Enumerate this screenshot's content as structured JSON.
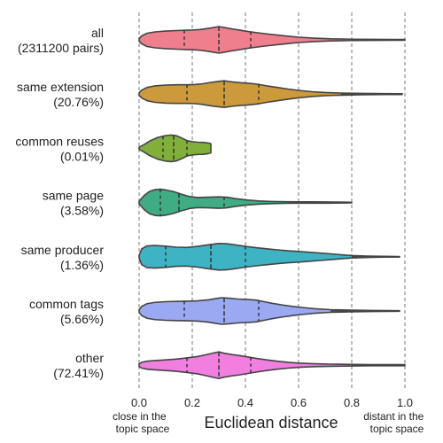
{
  "chart_data": {
    "type": "violin",
    "orientation": "horizontal",
    "xlabel": "Euclidean distance",
    "xlim": [
      0.0,
      1.0
    ],
    "xticks": [
      0.0,
      0.2,
      0.4,
      0.6,
      0.8,
      1.0
    ],
    "xtick_labels": [
      "0.0",
      "0.2",
      "0.4",
      "0.6",
      "0.8",
      "1.0"
    ],
    "grid": "vertical-dashed",
    "end_annotations": {
      "left": [
        "close in the",
        "topic space"
      ],
      "right": [
        "distant in the",
        "topic space"
      ]
    },
    "categories": [
      {
        "label": [
          "all",
          "(2311200 pairs)"
        ],
        "color": "#f07f8e",
        "min": 0.0,
        "max": 1.0,
        "q1": 0.17,
        "median": 0.3,
        "q3": 0.42,
        "density": [
          [
            0.0,
            0.1
          ],
          [
            0.01,
            0.3
          ],
          [
            0.03,
            0.5
          ],
          [
            0.06,
            0.6
          ],
          [
            0.1,
            0.66
          ],
          [
            0.14,
            0.7
          ],
          [
            0.17,
            0.72
          ],
          [
            0.2,
            0.74
          ],
          [
            0.23,
            0.78
          ],
          [
            0.26,
            0.86
          ],
          [
            0.28,
            0.93
          ],
          [
            0.3,
            1.0
          ],
          [
            0.32,
            0.93
          ],
          [
            0.35,
            0.82
          ],
          [
            0.38,
            0.73
          ],
          [
            0.41,
            0.63
          ],
          [
            0.44,
            0.55
          ],
          [
            0.48,
            0.45
          ],
          [
            0.52,
            0.36
          ],
          [
            0.56,
            0.28
          ],
          [
            0.6,
            0.2
          ],
          [
            0.66,
            0.13
          ],
          [
            0.72,
            0.08
          ],
          [
            0.8,
            0.05
          ],
          [
            0.88,
            0.035
          ],
          [
            0.95,
            0.03
          ],
          [
            1.0,
            0.03
          ]
        ]
      },
      {
        "label": [
          "same extension",
          "(20.76%)"
        ],
        "color": "#cc9a3b",
        "min": 0.0,
        "max": 0.99,
        "q1": 0.18,
        "median": 0.32,
        "q3": 0.45,
        "density": [
          [
            0.0,
            0.1
          ],
          [
            0.01,
            0.3
          ],
          [
            0.03,
            0.5
          ],
          [
            0.06,
            0.62
          ],
          [
            0.1,
            0.68
          ],
          [
            0.14,
            0.7
          ],
          [
            0.18,
            0.7
          ],
          [
            0.21,
            0.72
          ],
          [
            0.24,
            0.78
          ],
          [
            0.27,
            0.88
          ],
          [
            0.3,
            0.96
          ],
          [
            0.32,
            1.0
          ],
          [
            0.35,
            0.92
          ],
          [
            0.38,
            0.86
          ],
          [
            0.42,
            0.8
          ],
          [
            0.45,
            0.73
          ],
          [
            0.48,
            0.62
          ],
          [
            0.52,
            0.5
          ],
          [
            0.56,
            0.38
          ],
          [
            0.6,
            0.28
          ],
          [
            0.65,
            0.18
          ],
          [
            0.7,
            0.12
          ],
          [
            0.76,
            0.08
          ],
          [
            0.84,
            0.05
          ],
          [
            0.92,
            0.035
          ],
          [
            0.99,
            0.03
          ]
        ]
      },
      {
        "label": [
          "common reuses",
          "(0.01%)"
        ],
        "color": "#80b03a",
        "min": 0.0,
        "max": 0.27,
        "q1": 0.09,
        "median": 0.13,
        "q3": 0.18,
        "density": [
          [
            0.0,
            0.08
          ],
          [
            0.02,
            0.3
          ],
          [
            0.04,
            0.55
          ],
          [
            0.07,
            0.82
          ],
          [
            0.1,
            0.96
          ],
          [
            0.12,
            1.0
          ],
          [
            0.14,
            0.95
          ],
          [
            0.16,
            0.78
          ],
          [
            0.18,
            0.58
          ],
          [
            0.2,
            0.5
          ],
          [
            0.22,
            0.46
          ],
          [
            0.24,
            0.45
          ],
          [
            0.26,
            0.4
          ],
          [
            0.27,
            0.35
          ]
        ]
      },
      {
        "label": [
          "same page",
          "(3.58%)"
        ],
        "color": "#3fac84",
        "min": 0.0,
        "max": 0.8,
        "q1": 0.08,
        "median": 0.15,
        "q3": 0.32,
        "density": [
          [
            0.0,
            0.1
          ],
          [
            0.02,
            0.55
          ],
          [
            0.04,
            0.85
          ],
          [
            0.06,
            0.97
          ],
          [
            0.08,
            1.0
          ],
          [
            0.1,
            0.95
          ],
          [
            0.13,
            0.82
          ],
          [
            0.16,
            0.62
          ],
          [
            0.19,
            0.45
          ],
          [
            0.22,
            0.38
          ],
          [
            0.26,
            0.4
          ],
          [
            0.3,
            0.43
          ],
          [
            0.33,
            0.4
          ],
          [
            0.36,
            0.3
          ],
          [
            0.4,
            0.2
          ],
          [
            0.45,
            0.12
          ],
          [
            0.5,
            0.08
          ],
          [
            0.55,
            0.06
          ],
          [
            0.6,
            0.05
          ],
          [
            0.65,
            0.05
          ],
          [
            0.7,
            0.045
          ],
          [
            0.74,
            0.04
          ],
          [
            0.78,
            0.03
          ],
          [
            0.8,
            0.02
          ]
        ]
      },
      {
        "label": [
          "same producer",
          "(1.36%)"
        ],
        "color": "#3eb3c4",
        "min": 0.0,
        "max": 0.98,
        "q1": 0.1,
        "median": 0.27,
        "q3": 0.4,
        "density": [
          [
            0.0,
            0.1
          ],
          [
            0.01,
            0.6
          ],
          [
            0.03,
            0.82
          ],
          [
            0.06,
            0.85
          ],
          [
            0.1,
            0.8
          ],
          [
            0.14,
            0.72
          ],
          [
            0.18,
            0.7
          ],
          [
            0.22,
            0.78
          ],
          [
            0.26,
            0.9
          ],
          [
            0.3,
            1.0
          ],
          [
            0.33,
            0.98
          ],
          [
            0.36,
            0.9
          ],
          [
            0.4,
            0.78
          ],
          [
            0.44,
            0.68
          ],
          [
            0.48,
            0.6
          ],
          [
            0.52,
            0.52
          ],
          [
            0.56,
            0.45
          ],
          [
            0.6,
            0.4
          ],
          [
            0.64,
            0.34
          ],
          [
            0.68,
            0.28
          ],
          [
            0.72,
            0.22
          ],
          [
            0.76,
            0.15
          ],
          [
            0.8,
            0.09
          ],
          [
            0.86,
            0.05
          ],
          [
            0.92,
            0.03
          ],
          [
            0.98,
            0.02
          ]
        ]
      },
      {
        "label": [
          "common tags",
          "(5.66%)"
        ],
        "color": "#9aa9f2",
        "min": 0.0,
        "max": 0.98,
        "q1": 0.17,
        "median": 0.32,
        "q3": 0.45,
        "density": [
          [
            0.0,
            0.1
          ],
          [
            0.01,
            0.35
          ],
          [
            0.03,
            0.55
          ],
          [
            0.06,
            0.65
          ],
          [
            0.1,
            0.7
          ],
          [
            0.14,
            0.72
          ],
          [
            0.18,
            0.74
          ],
          [
            0.22,
            0.76
          ],
          [
            0.26,
            0.84
          ],
          [
            0.29,
            0.94
          ],
          [
            0.31,
            1.0
          ],
          [
            0.34,
            0.96
          ],
          [
            0.37,
            0.9
          ],
          [
            0.41,
            0.86
          ],
          [
            0.44,
            0.82
          ],
          [
            0.47,
            0.7
          ],
          [
            0.5,
            0.58
          ],
          [
            0.54,
            0.45
          ],
          [
            0.58,
            0.34
          ],
          [
            0.62,
            0.25
          ],
          [
            0.66,
            0.17
          ],
          [
            0.72,
            0.1
          ],
          [
            0.8,
            0.06
          ],
          [
            0.88,
            0.04
          ],
          [
            0.98,
            0.02
          ]
        ]
      },
      {
        "label": [
          "other",
          "(72.41%)"
        ],
        "color": "#f07fe0",
        "min": 0.0,
        "max": 1.0,
        "q1": 0.18,
        "median": 0.3,
        "q3": 0.42,
        "density": [
          [
            0.0,
            0.1
          ],
          [
            0.01,
            0.22
          ],
          [
            0.03,
            0.3
          ],
          [
            0.06,
            0.35
          ],
          [
            0.1,
            0.4
          ],
          [
            0.14,
            0.46
          ],
          [
            0.18,
            0.55
          ],
          [
            0.22,
            0.65
          ],
          [
            0.25,
            0.78
          ],
          [
            0.28,
            0.92
          ],
          [
            0.3,
            1.0
          ],
          [
            0.32,
            0.9
          ],
          [
            0.35,
            0.8
          ],
          [
            0.38,
            0.72
          ],
          [
            0.41,
            0.62
          ],
          [
            0.44,
            0.52
          ],
          [
            0.48,
            0.4
          ],
          [
            0.52,
            0.3
          ],
          [
            0.56,
            0.22
          ],
          [
            0.6,
            0.16
          ],
          [
            0.66,
            0.11
          ],
          [
            0.72,
            0.08
          ],
          [
            0.8,
            0.06
          ],
          [
            0.88,
            0.045
          ],
          [
            0.95,
            0.04
          ],
          [
            1.0,
            0.04
          ]
        ]
      }
    ]
  }
}
